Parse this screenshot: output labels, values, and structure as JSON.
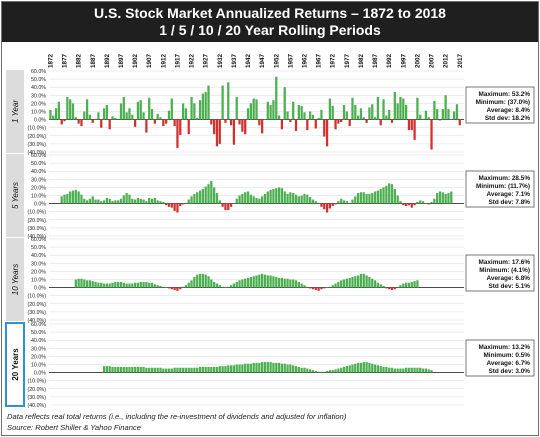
{
  "title": {
    "line1": "U.S. Stock Market Annualized Returns – 1872 to 2018",
    "line2": "1 / 5 / 10 / 20 Year Rolling Periods"
  },
  "footnotes": {
    "data_note": "Data reflects real total returns (i.e., including the re-investment of dividends and adjusted for inflation)",
    "source": "Source: Robert Shiller & Yahoo Finance"
  },
  "colors": {
    "positive": "#4caf50",
    "negative": "#d32f2f",
    "axis": "#333333",
    "grid": "#d9d9d9",
    "label_band": "#dcdcdc",
    "highlight_border": "#2f8fd8"
  },
  "chart_data": {
    "type": "bar",
    "x_tick_labels": [
      "1872",
      "1877",
      "1882",
      "1887",
      "1892",
      "1897",
      "1902",
      "1907",
      "1912",
      "1917",
      "1922",
      "1927",
      "1932",
      "1937",
      "1942",
      "1947",
      "1952",
      "1957",
      "1962",
      "1967",
      "1972",
      "1977",
      "1982",
      "1987",
      "1992",
      "1997",
      "2002",
      "2007",
      "2012",
      "2017"
    ],
    "x_range": [
      1872,
      2018
    ],
    "y_ticks": [
      "60.0%",
      "50.0%",
      "40.0%",
      "30.0%",
      "20.0%",
      "10.0%",
      "0.0%",
      "(10.0%)",
      "(20.0%)",
      "(30.0%)",
      "(40.0%)"
    ],
    "ylim": [
      -40,
      60
    ],
    "panels": [
      {
        "label": "1 Year",
        "period_years": 1,
        "highlighted": false,
        "stats": [
          "Maximum: 53.2%",
          "Minimum: (37.0%)",
          "Average: 8.4%",
          "Std dev: 18.2%"
        ],
        "start_year": 1872,
        "values": [
          12,
          5,
          14,
          22,
          -6,
          -2,
          28,
          25,
          20,
          3,
          -5,
          -8,
          10,
          25,
          6,
          -4,
          1,
          9,
          -10,
          14,
          18,
          -12,
          4,
          2,
          1,
          20,
          28,
          9,
          14,
          6,
          -9,
          22,
          24,
          9,
          -16,
          27,
          13,
          -5,
          7,
          3,
          -8,
          -5,
          11,
          26,
          -8,
          -35,
          -19,
          20,
          14,
          -18,
          28,
          20,
          2,
          24,
          32,
          34,
          42,
          -6,
          -18,
          -33,
          -30,
          42,
          -4,
          46,
          -7,
          -31,
          28,
          -6,
          -15,
          -18,
          14,
          20,
          26,
          25,
          -7,
          -17,
          0,
          22,
          18,
          24,
          53,
          5,
          -12,
          40,
          10,
          -3,
          22,
          -14,
          18,
          17,
          9,
          -13,
          10,
          6,
          -11,
          2,
          12,
          -21,
          -33,
          26,
          17,
          -12,
          -5,
          -3,
          18,
          10,
          -8,
          27,
          18,
          5,
          14,
          3,
          -4,
          15,
          19,
          3,
          28,
          -7,
          25,
          5,
          12,
          -4,
          34,
          20,
          28,
          26,
          18,
          -13,
          -13,
          -25,
          27,
          6,
          1,
          11,
          3,
          -37,
          23,
          13,
          -1,
          13,
          30,
          13,
          0,
          10,
          19,
          -7
        ]
      },
      {
        "label": "5 Years",
        "period_years": 5,
        "highlighted": false,
        "stats": [
          "Maximum: 28.5%",
          "Minimum: (11.7%)",
          "Average: 7.1%",
          "Std dev: 7.8%"
        ],
        "start_year": 1876,
        "values": [
          9,
          11,
          12,
          15,
          16,
          17,
          15,
          11,
          6,
          4,
          6,
          9,
          5,
          5,
          3,
          4,
          7,
          6,
          3,
          4,
          4,
          6,
          10,
          13,
          11,
          6,
          5,
          7,
          6,
          5,
          3,
          7,
          6,
          7,
          4,
          3,
          2,
          -2,
          -4,
          -5,
          -9,
          -11,
          -3,
          -1,
          1,
          5,
          9,
          12,
          14,
          16,
          18,
          21,
          24,
          28,
          20,
          13,
          4,
          -4,
          -8,
          -8,
          -4,
          0,
          6,
          10,
          12,
          14,
          15,
          11,
          9,
          7,
          6,
          9,
          12,
          15,
          17,
          18,
          19,
          20,
          19,
          15,
          12,
          14,
          13,
          11,
          9,
          10,
          12,
          11,
          8,
          5,
          3,
          1,
          -4,
          -7,
          -11,
          -6,
          -3,
          -1,
          3,
          6,
          4,
          3,
          1,
          5,
          9,
          13,
          14,
          14,
          12,
          12,
          13,
          15,
          16,
          18,
          20,
          22,
          25,
          24,
          18,
          10,
          3,
          -2,
          -3,
          -2,
          -5,
          -2,
          2,
          4,
          3,
          0,
          -1,
          2,
          6,
          13,
          15,
          14,
          12,
          13,
          15
        ]
      },
      {
        "label": "10 Years",
        "period_years": 10,
        "highlighted": false,
        "stats": [
          "Maximum: 17.6%",
          "Minimum: (4.1%)",
          "Average: 6.8%",
          "Std dev: 5.1%"
        ],
        "start_year": 1881,
        "values": [
          10,
          11,
          11,
          10,
          9,
          9,
          8,
          7,
          6,
          6,
          5,
          5,
          5,
          6,
          7,
          7,
          7,
          6,
          5,
          5,
          5,
          6,
          6,
          7,
          7,
          7,
          6,
          6,
          4,
          3,
          2,
          1,
          0,
          -1,
          -2,
          -3,
          -4,
          -2,
          1,
          3,
          6,
          9,
          13,
          16,
          17,
          17,
          16,
          14,
          10,
          7,
          5,
          3,
          1,
          0,
          1,
          3,
          5,
          7,
          9,
          10,
          11,
          12,
          13,
          14,
          15,
          16,
          17,
          16,
          15,
          15,
          14,
          13,
          12,
          12,
          11,
          11,
          10,
          10,
          9,
          7,
          5,
          3,
          1,
          -1,
          -2,
          -3,
          -4,
          -2,
          -1,
          0,
          1,
          3,
          5,
          7,
          9,
          10,
          11,
          12,
          13,
          14,
          15,
          17,
          17,
          15,
          13,
          11,
          9,
          6,
          4,
          2,
          -1,
          -2,
          -3,
          -2,
          1,
          3,
          5,
          6,
          6,
          7,
          8,
          9
        ]
      },
      {
        "label": "20 Years",
        "period_years": 20,
        "highlighted": true,
        "stats": [
          "Maximum: 13.2%",
          "Minimum: 0.5%",
          "Average: 6.7%",
          "Std dev: 3.0%"
        ],
        "start_year": 1891,
        "values": [
          8,
          8,
          8,
          7,
          7,
          7,
          7,
          7,
          7,
          7,
          7,
          7,
          7,
          7,
          7,
          6,
          6,
          6,
          6,
          6,
          6,
          5,
          5,
          5,
          5,
          6,
          6,
          6,
          6,
          6,
          6,
          6,
          6,
          6,
          7,
          7,
          7,
          7,
          7,
          7,
          7,
          8,
          8,
          8,
          9,
          9,
          9,
          10,
          10,
          10,
          11,
          11,
          11,
          12,
          12,
          12,
          13,
          13,
          13,
          13,
          12,
          12,
          12,
          11,
          11,
          10,
          10,
          9,
          8,
          7,
          6,
          6,
          5,
          4,
          3,
          2,
          1,
          1,
          1,
          2,
          3,
          3,
          4,
          5,
          6,
          7,
          8,
          9,
          10,
          11,
          12,
          12,
          13,
          13,
          12,
          11,
          10,
          9,
          8,
          7,
          7,
          6,
          6,
          5,
          5,
          5,
          5,
          6,
          6,
          6,
          6,
          6,
          6,
          5,
          5,
          4,
          3
        ]
      }
    ]
  }
}
